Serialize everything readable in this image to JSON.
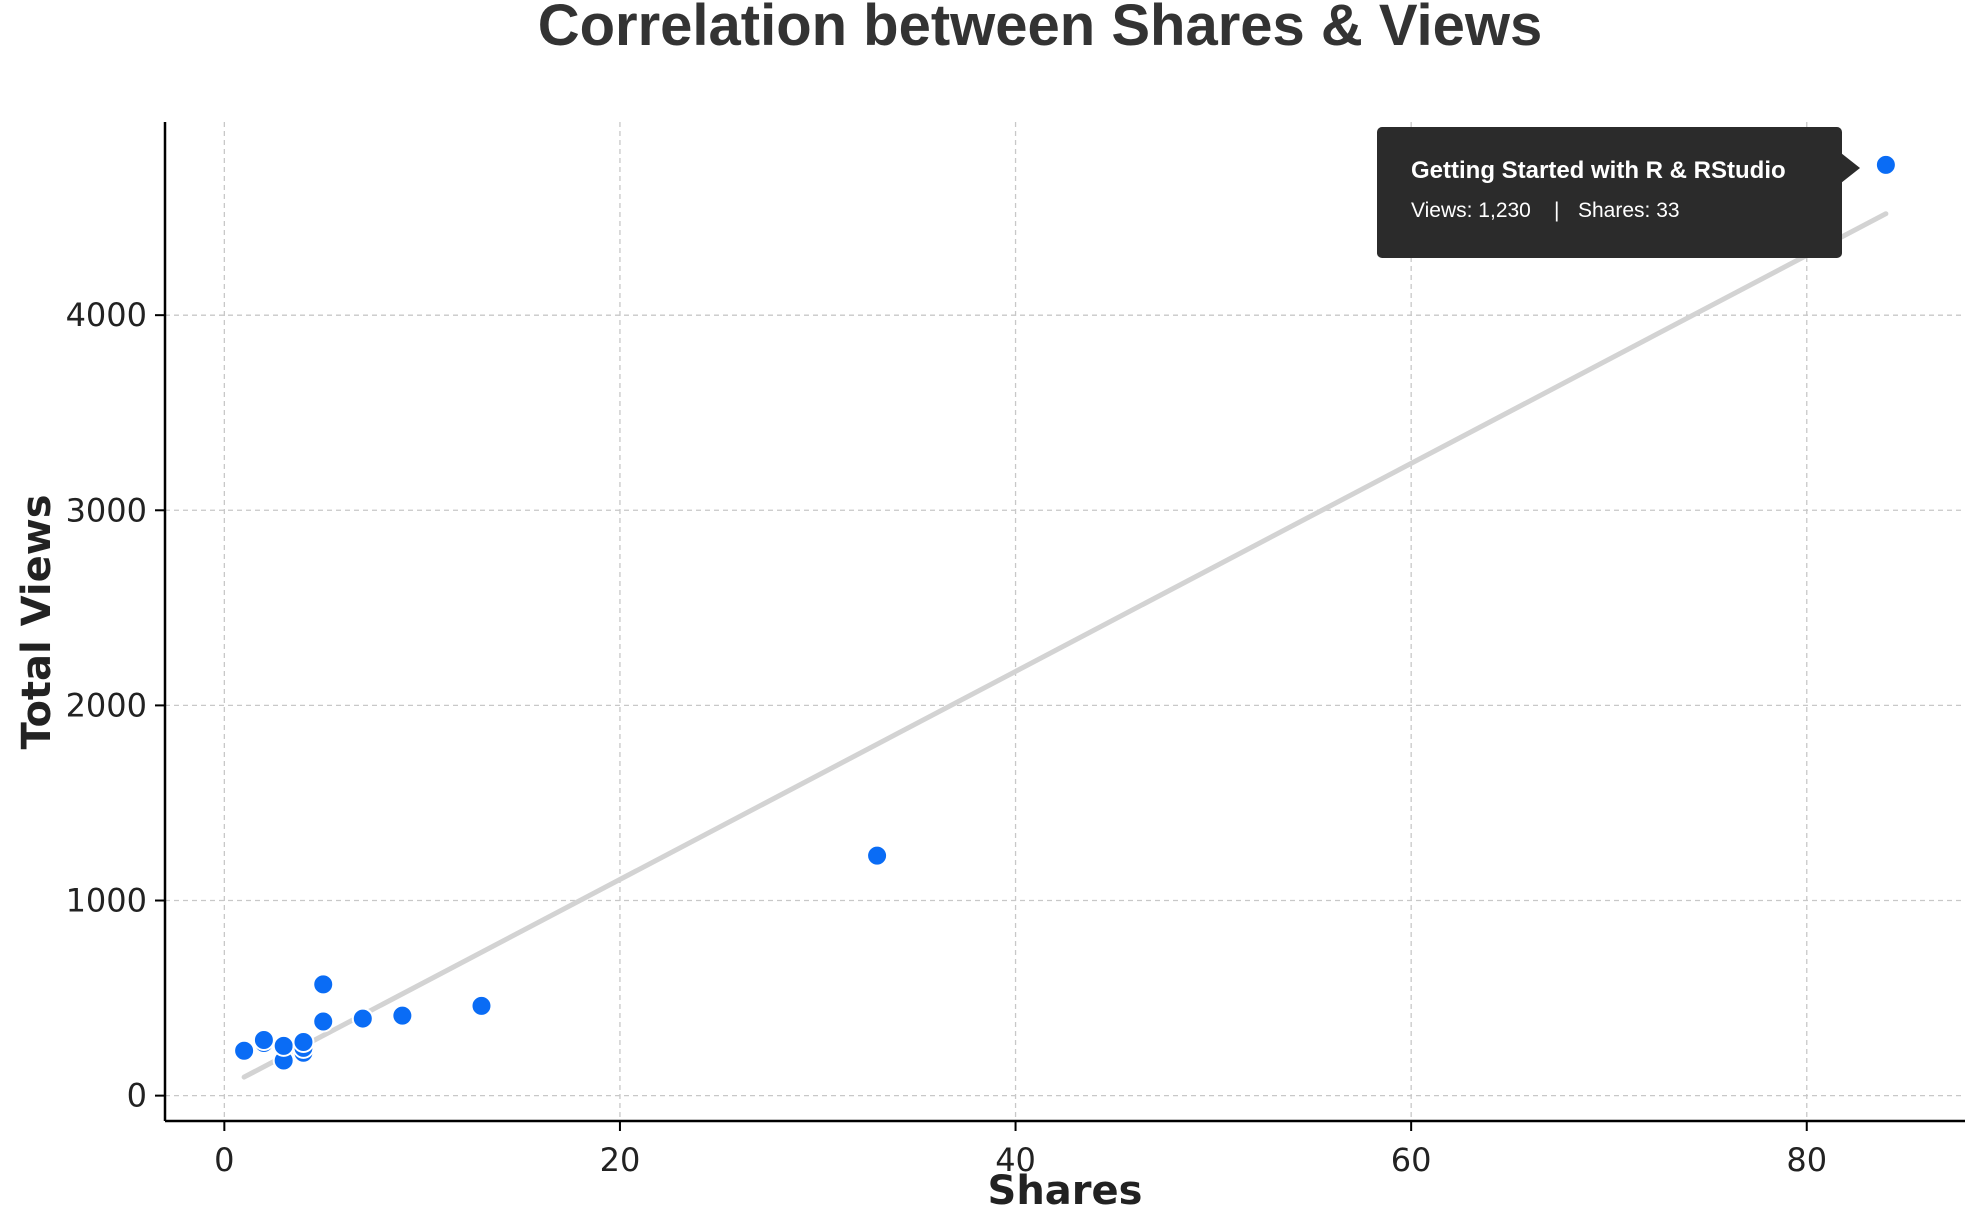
{
  "chart_data": {
    "type": "scatter",
    "title": "Correlation between Shares & Views",
    "xlabel": "Shares",
    "ylabel": "Total Views",
    "xlim": [
      -3,
      88
    ],
    "ylim": [
      -130,
      4990
    ],
    "xticks": [
      0,
      20,
      40,
      60,
      80
    ],
    "yticks": [
      0,
      1000,
      2000,
      3000,
      4000
    ],
    "grid": true,
    "point_color": "#0a6cf5",
    "trendline_color": "#d3d3d3",
    "points": [
      {
        "x": 1,
        "y": 230
      },
      {
        "x": 2,
        "y": 270
      },
      {
        "x": 2,
        "y": 285
      },
      {
        "x": 3,
        "y": 180
      },
      {
        "x": 3,
        "y": 255
      },
      {
        "x": 4,
        "y": 220
      },
      {
        "x": 4,
        "y": 245
      },
      {
        "x": 4,
        "y": 275
      },
      {
        "x": 5,
        "y": 380
      },
      {
        "x": 5,
        "y": 570
      },
      {
        "x": 7,
        "y": 395
      },
      {
        "x": 9,
        "y": 410
      },
      {
        "x": 13,
        "y": 460
      },
      {
        "x": 33,
        "y": 1230
      },
      {
        "x": 84,
        "y": 4770
      }
    ],
    "trendline": {
      "x": [
        1,
        84
      ],
      "y": [
        95,
        4520
      ]
    }
  },
  "tooltip": {
    "title": "Getting Started with R & RStudio",
    "views_text": "Views: 1,230",
    "separator": "|",
    "shares_text": "Shares: 33"
  }
}
